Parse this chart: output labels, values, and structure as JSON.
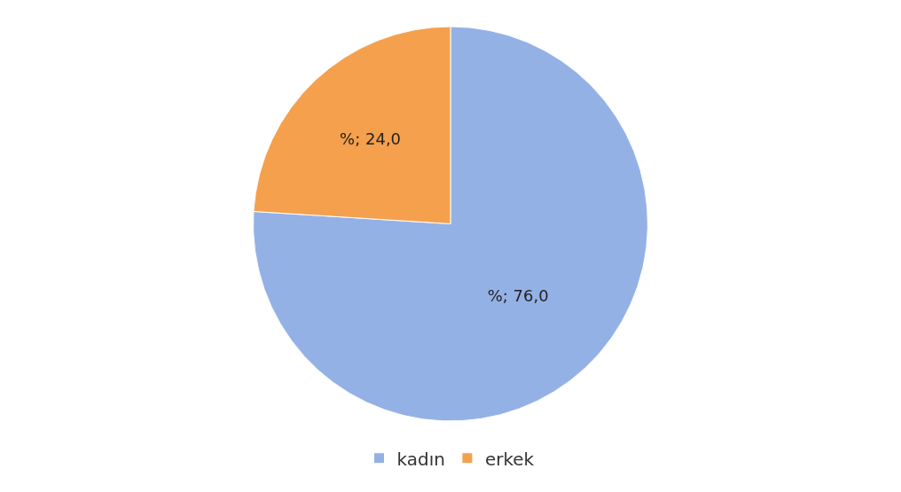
{
  "chart_data": {
    "type": "pie",
    "categories": [
      "kadın",
      "erkek"
    ],
    "values": [
      76,
      24
    ],
    "value_labels": [
      "%; 76,0",
      "%; 24,0"
    ],
    "colors": [
      "#94b1e6",
      "#f5a04c"
    ],
    "legend": "bottom"
  }
}
